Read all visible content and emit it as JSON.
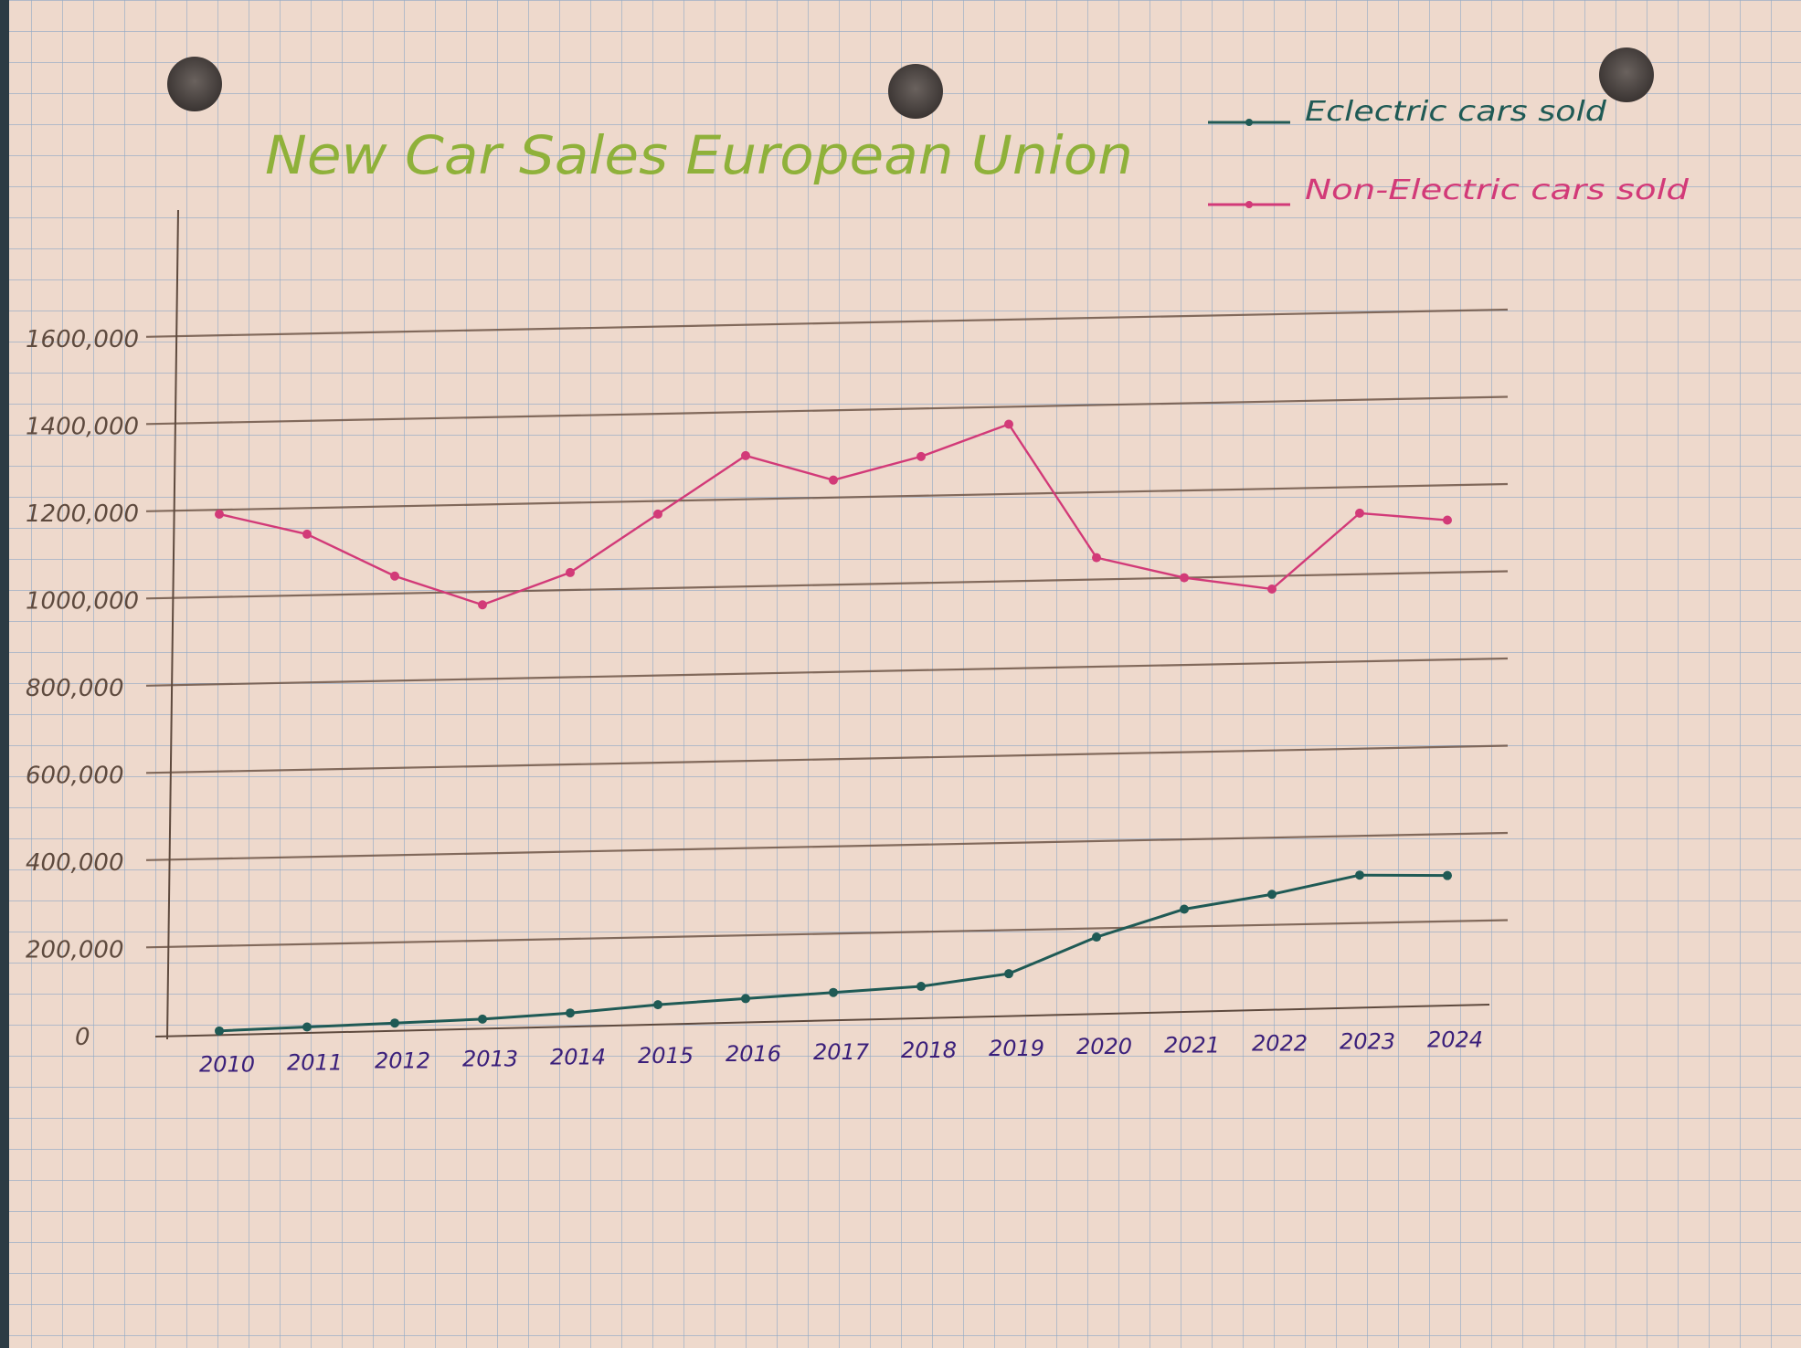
{
  "chart_data": {
    "type": "line",
    "title": "New Car Sales European Union",
    "xlabel": "",
    "ylabel": "",
    "x": [
      "2010",
      "2011",
      "2012",
      "2013",
      "2014",
      "2015",
      "2016",
      "2017",
      "2018",
      "2019",
      "2020",
      "2021",
      "2022",
      "2023",
      "2024"
    ],
    "x_tick_labels": [
      "2010",
      "2011",
      "2012",
      "2013",
      "2014",
      "2015",
      "2016",
      "2017",
      "2018",
      "2019",
      "2020",
      "2021",
      "2022",
      "2023",
      "2024"
    ],
    "y_tick_labels": [
      "0",
      "200,000",
      "400,000",
      "600,000",
      "800,000",
      "1000,000",
      "1200,000",
      "1400,000",
      "1600,000"
    ],
    "y_ticks": [
      0,
      200000,
      400000,
      600000,
      800000,
      1000000,
      1200000,
      1400000,
      1600000
    ],
    "ylim": [
      0,
      1600000
    ],
    "grid": true,
    "legend_position": "top-right",
    "series": [
      {
        "name": "Eclectric cars sold",
        "color": "#1f5a55",
        "values": [
          5000,
          10000,
          15000,
          20000,
          30000,
          45000,
          55000,
          65000,
          75000,
          100000,
          180000,
          240000,
          270000,
          310000,
          305000
        ]
      },
      {
        "name": "Non-Electric cars sold",
        "color": "#d23a78",
        "values": [
          1190000,
          1140000,
          1040000,
          970000,
          1040000,
          1170000,
          1300000,
          1240000,
          1290000,
          1360000,
          1050000,
          1000000,
          970000,
          1140000,
          1120000
        ]
      }
    ]
  },
  "paper": {
    "color": "#eed9cc",
    "grid_color": "#8fa8c6"
  },
  "colors": {
    "title": "#8fb13a",
    "tick_label": "#3a1f7a",
    "axis": "#5e4a3e"
  }
}
